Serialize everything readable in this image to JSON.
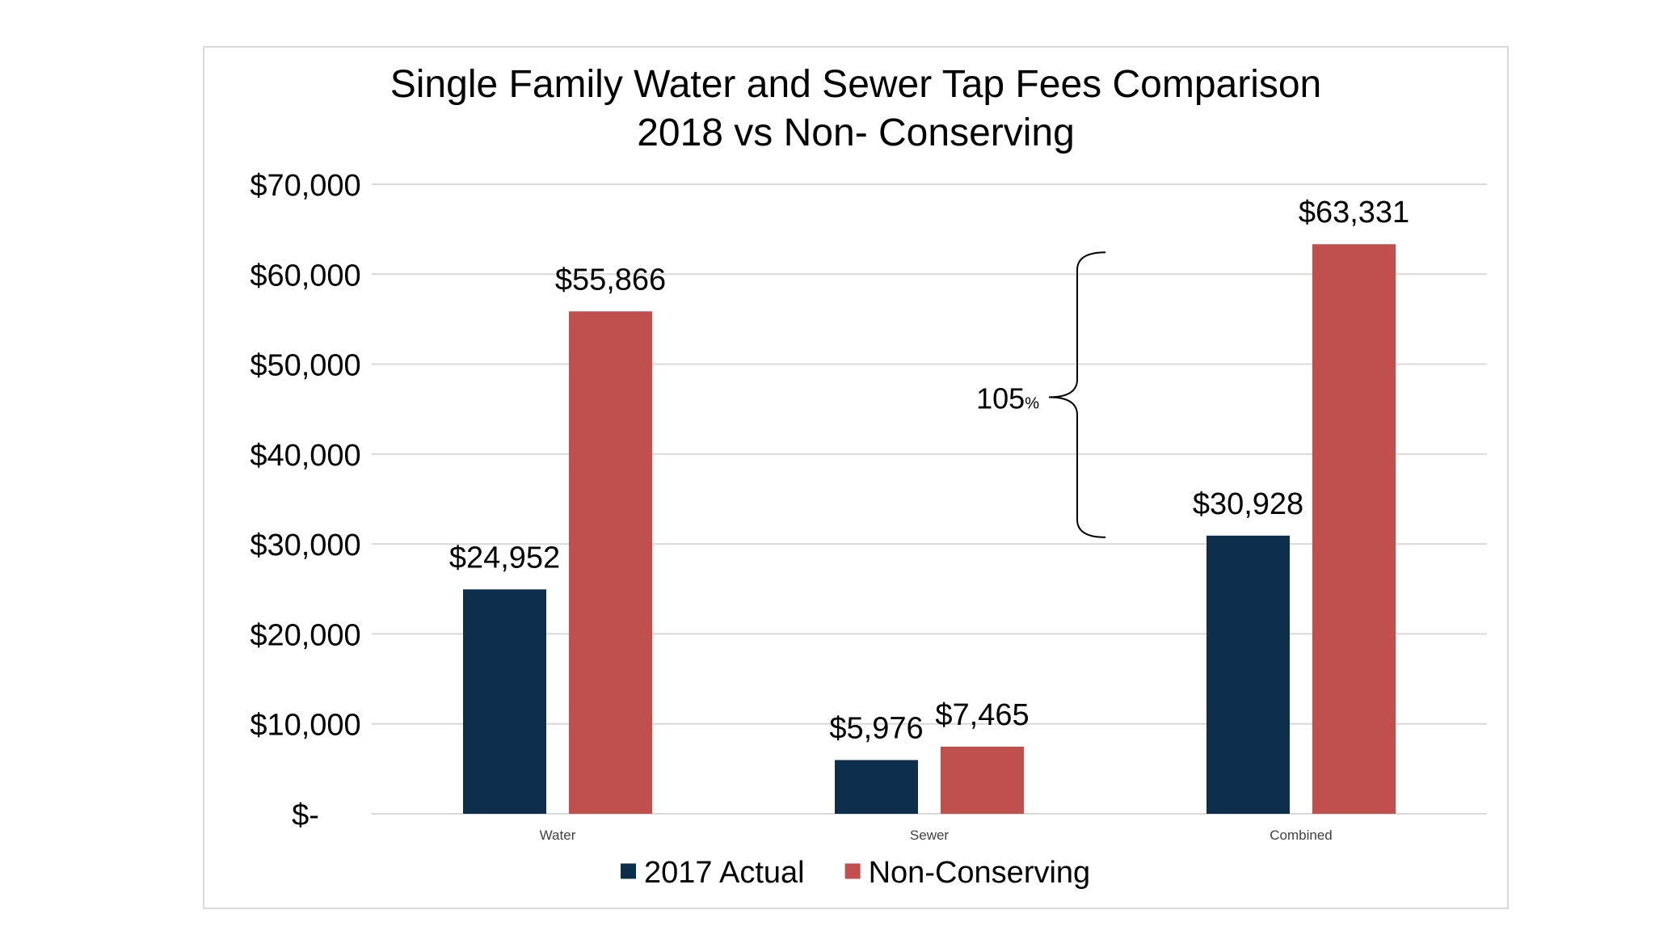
{
  "chart_data": {
    "type": "bar",
    "title": "Single Family Water and Sewer Tap Fees Comparison",
    "subtitle": "2018 vs Non- Conserving",
    "categories": [
      "Water",
      "Sewer",
      "Combined"
    ],
    "series": [
      {
        "name": "2017 Actual",
        "color": "#0d2f4d",
        "values": [
          24952,
          5976,
          30928
        ],
        "labels": [
          "$24,952",
          "$5,976",
          "$30,928"
        ]
      },
      {
        "name": "Non-Conserving",
        "color": "#c0504d",
        "values": [
          55866,
          7465,
          63331
        ],
        "labels": [
          "$55,866",
          "$7,465",
          "$63,331"
        ]
      }
    ],
    "ylim": [
      0,
      70000
    ],
    "yticks": [
      0,
      10000,
      20000,
      30000,
      40000,
      50000,
      60000,
      70000
    ],
    "ytick_labels": [
      "$-",
      "$10,000",
      "$20,000",
      "$30,000",
      "$40,000",
      "$50,000",
      "$60,000",
      "$70,000"
    ],
    "xlabel": "",
    "ylabel": "",
    "grid": true,
    "legend_position": "bottom-center",
    "annotation": {
      "category": "Combined",
      "from_value": 30928,
      "to_value": 63331,
      "label_number": "105",
      "label_unit": "%"
    }
  }
}
